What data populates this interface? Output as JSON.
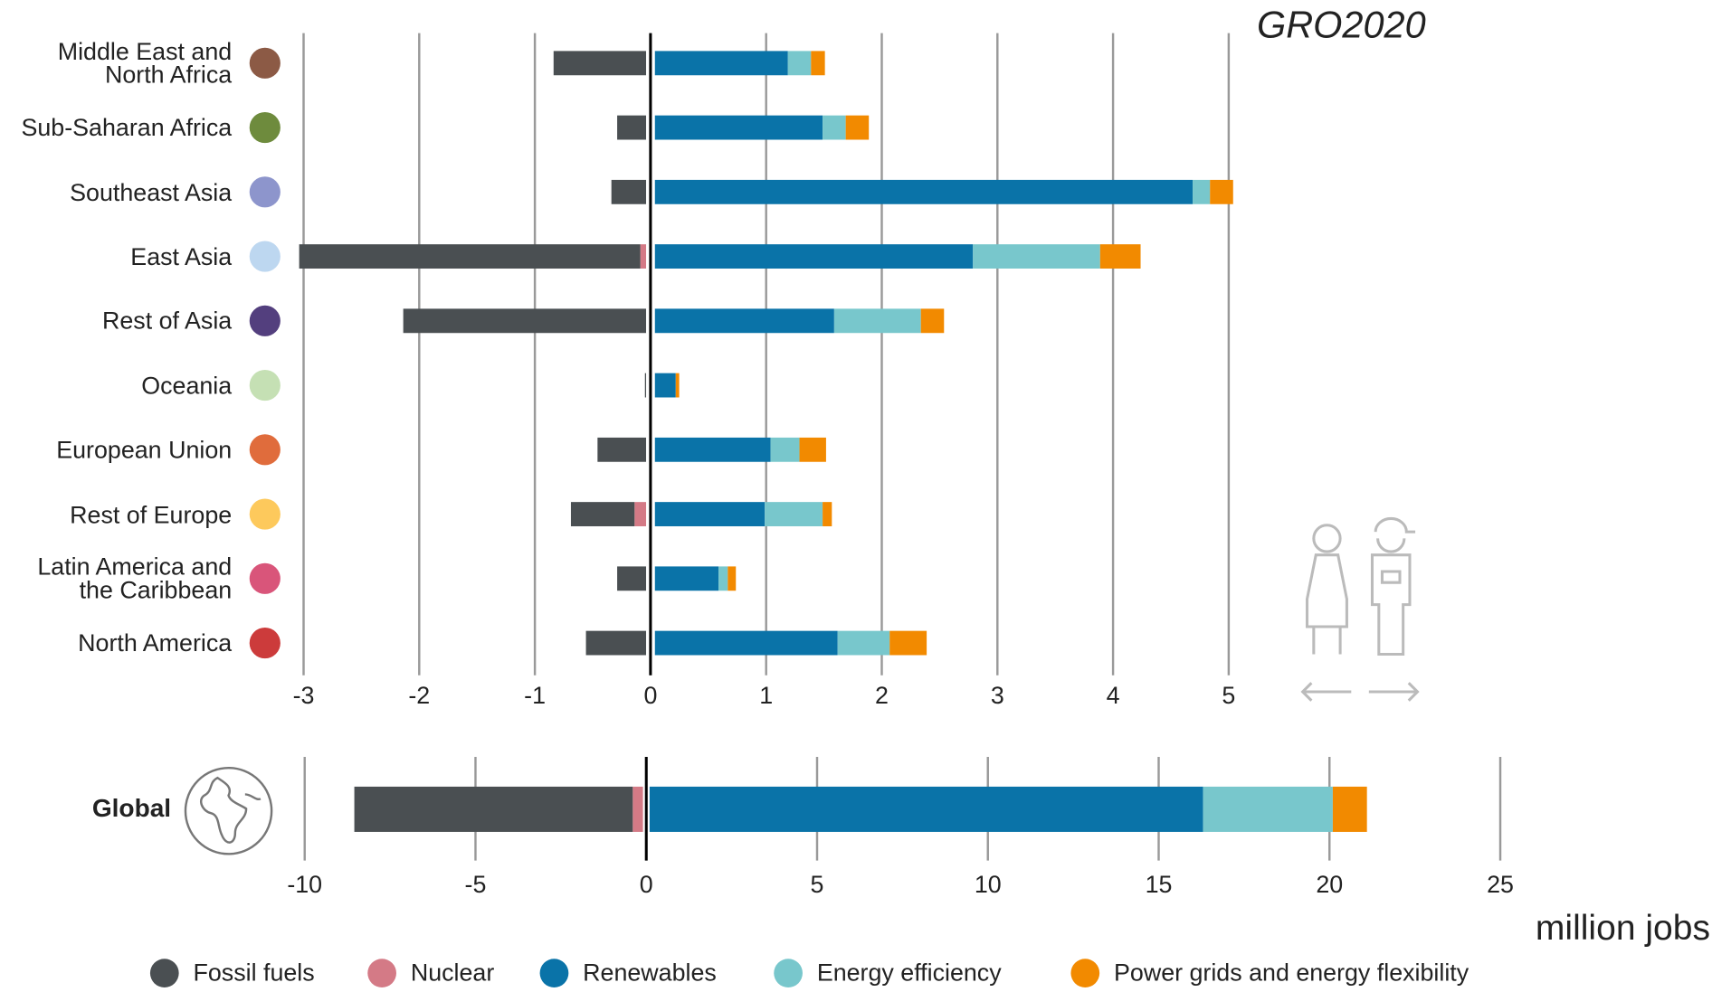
{
  "chart_data": [
    {
      "type": "bar",
      "orientation": "horizontal",
      "stacked": true,
      "title": "GRO2020",
      "categories": [
        "Middle East and\nNorth Africa",
        "Sub-Saharan Africa",
        "Southeast Asia",
        "East Asia",
        "Rest of Asia",
        "Oceania",
        "European Union",
        "Rest of Europe",
        "Latin America and\nthe Caribbean",
        "North America"
      ],
      "category_colors": [
        "#8c5a45",
        "#6e8b3d",
        "#8d95cc",
        "#bdd7f0",
        "#533f7e",
        "#c5e0b4",
        "#e06c3c",
        "#fdc95c",
        "#d9557a",
        "#cc3b3b"
      ],
      "series": [
        {
          "name": "Fossil fuels",
          "color": "#4a4f52",
          "values": [
            -0.8,
            -0.25,
            -0.3,
            -2.95,
            -2.1,
            -0.01,
            -0.42,
            -0.55,
            -0.25,
            -0.52
          ]
        },
        {
          "name": "Nuclear",
          "color": "#d47a86",
          "values": [
            0,
            0,
            0,
            -0.05,
            0,
            0,
            0,
            -0.1,
            0,
            0
          ]
        },
        {
          "name": "Renewables",
          "color": "#0a73a8",
          "values": [
            1.15,
            1.45,
            4.65,
            2.75,
            1.55,
            0.18,
            1.0,
            0.95,
            0.55,
            1.58
          ]
        },
        {
          "name": "Energy efficiency",
          "color": "#78c7cc",
          "values": [
            0.2,
            0.2,
            0.15,
            1.1,
            0.75,
            0,
            0.25,
            0.5,
            0.08,
            0.45
          ]
        },
        {
          "name": "Power grids and energy flexibility",
          "color": "#f28a00",
          "values": [
            0.12,
            0.2,
            0.2,
            0.35,
            0.2,
            0.03,
            0.23,
            0.08,
            0.07,
            0.32
          ]
        }
      ],
      "xlim": [
        -3,
        5
      ],
      "xticks": [
        -3,
        -2,
        -1,
        0,
        1,
        2,
        3,
        4,
        5
      ],
      "grid": true
    },
    {
      "type": "bar",
      "orientation": "horizontal",
      "stacked": true,
      "categories": [
        "Global"
      ],
      "xlabel": "million jobs",
      "series": [
        {
          "color": "#4a4f52",
          "values": [
            -8.15
          ]
        },
        {
          "color": "#d47a86",
          "values": [
            -0.3
          ]
        },
        {
          "color": "#0a73a8",
          "values": [
            16.2
          ]
        },
        {
          "color": "#78c7cc",
          "values": [
            3.8
          ]
        },
        {
          "color": "#f28a00",
          "values": [
            1.0
          ]
        }
      ],
      "xlim": [
        -10,
        25
      ],
      "xticks": [
        -10,
        -5,
        0,
        5,
        10,
        15,
        20,
        25
      ],
      "grid": true
    }
  ]
}
